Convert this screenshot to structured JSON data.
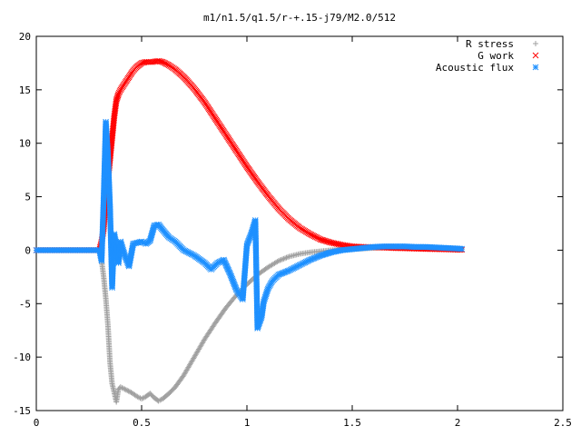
{
  "chart_data": {
    "type": "scatter",
    "title": "m1/n1.5/q1.5/r-+.15-j79/M2.0/512",
    "xlabel": "",
    "ylabel": "",
    "xlim": [
      0,
      2.5
    ],
    "ylim": [
      -15,
      20
    ],
    "x_ticks": [
      "0",
      "0.5",
      "1",
      "1.5",
      "2",
      "2.5"
    ],
    "y_ticks": [
      "-15",
      "-10",
      "-5",
      "0",
      "5",
      "10",
      "15",
      "20"
    ],
    "grid": false,
    "legend_position": "top-right",
    "series": [
      {
        "name": "R stress",
        "marker": "+",
        "color": "#a0a0a0",
        "points": [
          [
            0.0,
            0
          ],
          [
            0.05,
            0
          ],
          [
            0.1,
            0
          ],
          [
            0.15,
            0
          ],
          [
            0.2,
            0
          ],
          [
            0.25,
            0
          ],
          [
            0.3,
            0
          ],
          [
            0.31,
            -1.0
          ],
          [
            0.32,
            -2.5
          ],
          [
            0.33,
            -4.5
          ],
          [
            0.34,
            -7.0
          ],
          [
            0.35,
            -10.5
          ],
          [
            0.36,
            -12.5
          ],
          [
            0.37,
            -13.3
          ],
          [
            0.38,
            -14.2
          ],
          [
            0.39,
            -13.0
          ],
          [
            0.4,
            -12.8
          ],
          [
            0.42,
            -13.0
          ],
          [
            0.45,
            -13.3
          ],
          [
            0.48,
            -13.7
          ],
          [
            0.5,
            -13.9
          ],
          [
            0.52,
            -13.7
          ],
          [
            0.54,
            -13.4
          ],
          [
            0.56,
            -13.8
          ],
          [
            0.58,
            -14.1
          ],
          [
            0.6,
            -13.9
          ],
          [
            0.63,
            -13.4
          ],
          [
            0.66,
            -12.8
          ],
          [
            0.7,
            -11.7
          ],
          [
            0.75,
            -10.0
          ],
          [
            0.8,
            -8.3
          ],
          [
            0.85,
            -6.8
          ],
          [
            0.9,
            -5.4
          ],
          [
            0.95,
            -4.2
          ],
          [
            1.0,
            -3.2
          ],
          [
            1.05,
            -2.3
          ],
          [
            1.1,
            -1.6
          ],
          [
            1.15,
            -1.0
          ],
          [
            1.2,
            -0.6
          ],
          [
            1.25,
            -0.35
          ],
          [
            1.3,
            -0.2
          ],
          [
            1.35,
            -0.1
          ],
          [
            1.4,
            0.0
          ],
          [
            1.45,
            0.05
          ],
          [
            1.5,
            0.1
          ],
          [
            1.55,
            0.15
          ],
          [
            1.6,
            0.2
          ],
          [
            1.65,
            0.25
          ],
          [
            1.7,
            0.3
          ],
          [
            1.75,
            0.3
          ],
          [
            1.8,
            0.28
          ],
          [
            1.85,
            0.25
          ],
          [
            1.9,
            0.2
          ],
          [
            1.95,
            0.15
          ],
          [
            2.0,
            0.1
          ],
          [
            2.02,
            0.08
          ]
        ]
      },
      {
        "name": "G work",
        "marker": "x",
        "color": "#ff0000",
        "points": [
          [
            0.0,
            0
          ],
          [
            0.05,
            0
          ],
          [
            0.1,
            0
          ],
          [
            0.15,
            0
          ],
          [
            0.2,
            0
          ],
          [
            0.25,
            0
          ],
          [
            0.3,
            0
          ],
          [
            0.31,
            0.8
          ],
          [
            0.32,
            2.0
          ],
          [
            0.33,
            4.5
          ],
          [
            0.34,
            6.5
          ],
          [
            0.35,
            8.5
          ],
          [
            0.36,
            10.5
          ],
          [
            0.37,
            12.5
          ],
          [
            0.38,
            14.0
          ],
          [
            0.39,
            14.6
          ],
          [
            0.4,
            15.0
          ],
          [
            0.42,
            15.6
          ],
          [
            0.44,
            16.2
          ],
          [
            0.46,
            16.8
          ],
          [
            0.48,
            17.2
          ],
          [
            0.5,
            17.5
          ],
          [
            0.52,
            17.6
          ],
          [
            0.55,
            17.6
          ],
          [
            0.58,
            17.7
          ],
          [
            0.6,
            17.6
          ],
          [
            0.63,
            17.3
          ],
          [
            0.66,
            16.9
          ],
          [
            0.7,
            16.2
          ],
          [
            0.75,
            15.1
          ],
          [
            0.8,
            13.8
          ],
          [
            0.85,
            12.3
          ],
          [
            0.9,
            10.8
          ],
          [
            0.95,
            9.3
          ],
          [
            1.0,
            7.8
          ],
          [
            1.05,
            6.4
          ],
          [
            1.1,
            5.1
          ],
          [
            1.15,
            3.9
          ],
          [
            1.2,
            2.9
          ],
          [
            1.25,
            2.1
          ],
          [
            1.3,
            1.5
          ],
          [
            1.35,
            1.0
          ],
          [
            1.4,
            0.7
          ],
          [
            1.45,
            0.5
          ],
          [
            1.5,
            0.35
          ],
          [
            1.55,
            0.3
          ],
          [
            1.6,
            0.28
          ],
          [
            1.65,
            0.25
          ],
          [
            1.7,
            0.2
          ],
          [
            1.75,
            0.18
          ],
          [
            1.8,
            0.15
          ],
          [
            1.85,
            0.12
          ],
          [
            1.9,
            0.1
          ],
          [
            1.95,
            0.08
          ],
          [
            2.0,
            0.05
          ],
          [
            2.02,
            0.05
          ]
        ]
      },
      {
        "name": "Acoustic flux",
        "marker": "*",
        "color": "#1e90ff",
        "points": [
          [
            0.0,
            0
          ],
          [
            0.05,
            0
          ],
          [
            0.1,
            0
          ],
          [
            0.15,
            0
          ],
          [
            0.2,
            0
          ],
          [
            0.25,
            0
          ],
          [
            0.3,
            0
          ],
          [
            0.31,
            -1.0
          ],
          [
            0.32,
            5.0
          ],
          [
            0.33,
            12.0
          ],
          [
            0.34,
            9.0
          ],
          [
            0.35,
            4.0
          ],
          [
            0.36,
            -3.5
          ],
          [
            0.37,
            1.5
          ],
          [
            0.38,
            0.5
          ],
          [
            0.39,
            -1.2
          ],
          [
            0.4,
            0.8
          ],
          [
            0.42,
            -0.5
          ],
          [
            0.44,
            -1.5
          ],
          [
            0.46,
            0.6
          ],
          [
            0.48,
            0.7
          ],
          [
            0.5,
            0.8
          ],
          [
            0.52,
            0.6
          ],
          [
            0.54,
            0.9
          ],
          [
            0.56,
            2.3
          ],
          [
            0.58,
            2.4
          ],
          [
            0.6,
            1.9
          ],
          [
            0.63,
            1.2
          ],
          [
            0.66,
            0.8
          ],
          [
            0.7,
            0.0
          ],
          [
            0.75,
            -0.5
          ],
          [
            0.8,
            -1.2
          ],
          [
            0.83,
            -1.8
          ],
          [
            0.86,
            -1.2
          ],
          [
            0.89,
            -0.9
          ],
          [
            0.92,
            -2.2
          ],
          [
            0.95,
            -3.7
          ],
          [
            0.98,
            -4.6
          ],
          [
            1.0,
            0.5
          ],
          [
            1.02,
            1.5
          ],
          [
            1.04,
            2.8
          ],
          [
            1.05,
            -7.3
          ],
          [
            1.07,
            -6.2
          ],
          [
            1.08,
            -4.8
          ],
          [
            1.1,
            -3.6
          ],
          [
            1.12,
            -2.9
          ],
          [
            1.15,
            -2.3
          ],
          [
            1.2,
            -1.9
          ],
          [
            1.25,
            -1.4
          ],
          [
            1.3,
            -0.9
          ],
          [
            1.35,
            -0.5
          ],
          [
            1.4,
            -0.2
          ],
          [
            1.45,
            0.0
          ],
          [
            1.5,
            0.1
          ],
          [
            1.55,
            0.2
          ],
          [
            1.6,
            0.3
          ],
          [
            1.65,
            0.35
          ],
          [
            1.7,
            0.35
          ],
          [
            1.75,
            0.35
          ],
          [
            1.8,
            0.3
          ],
          [
            1.85,
            0.3
          ],
          [
            1.9,
            0.25
          ],
          [
            1.95,
            0.2
          ],
          [
            2.0,
            0.15
          ],
          [
            2.02,
            0.12
          ]
        ]
      }
    ]
  }
}
